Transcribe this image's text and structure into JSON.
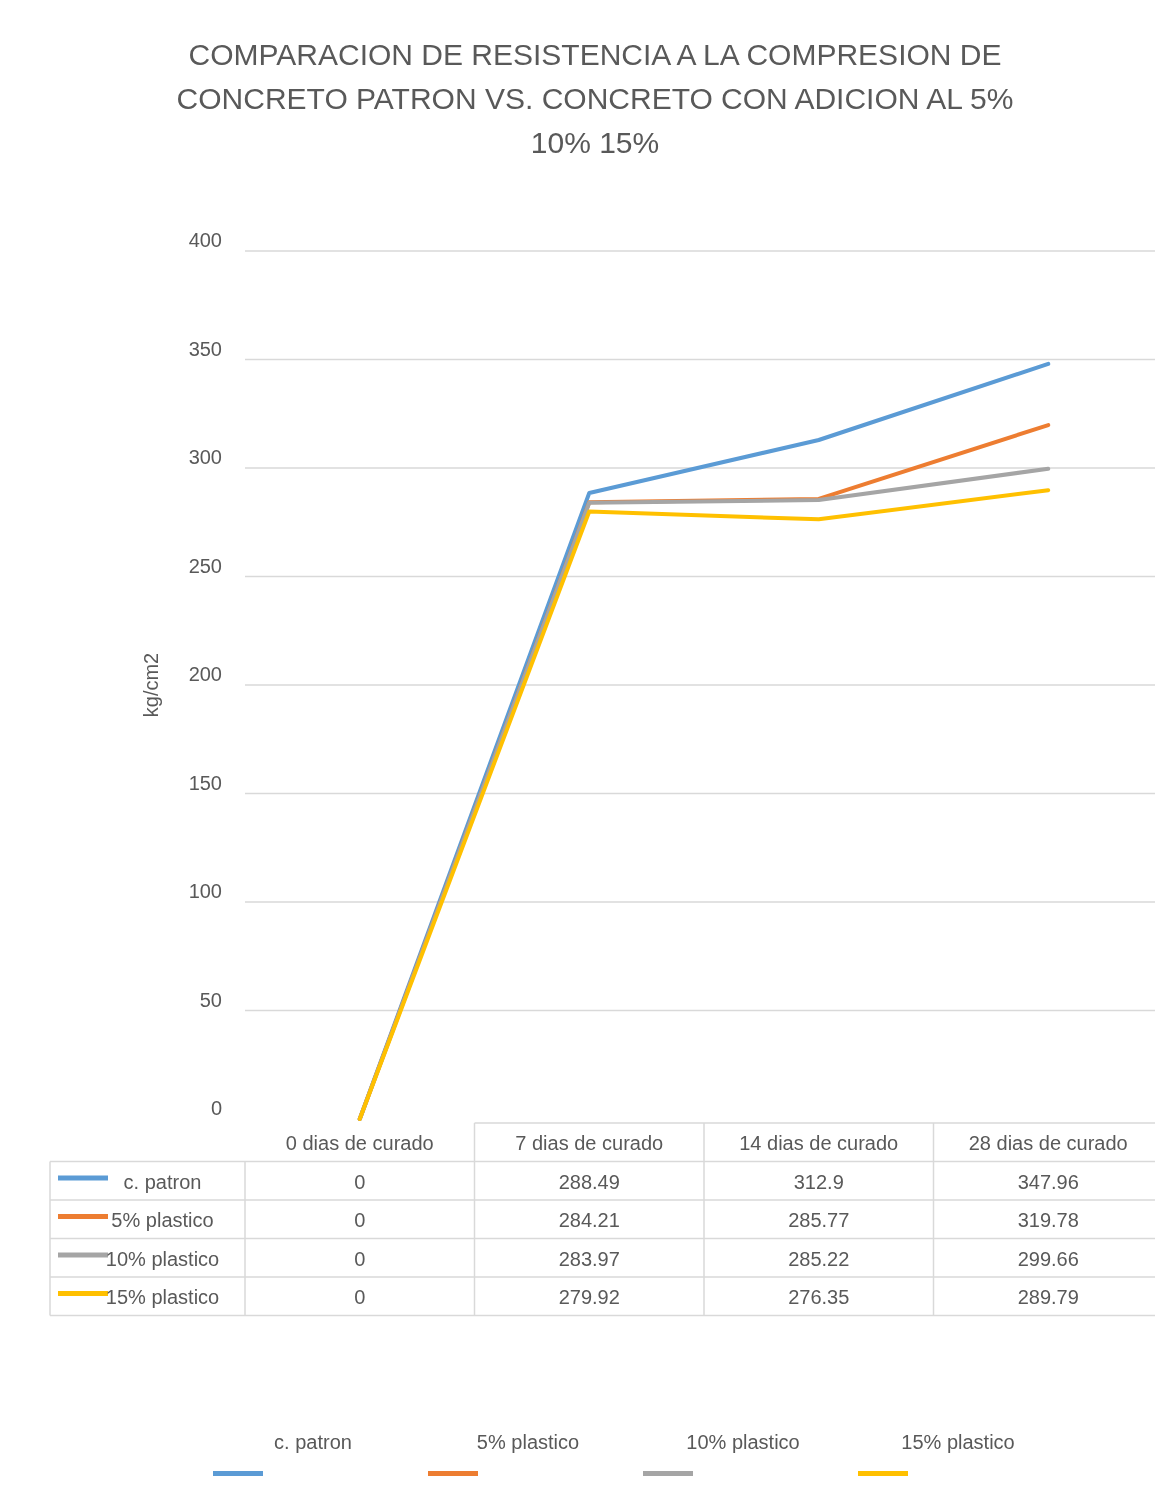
{
  "chart_data": {
    "type": "line",
    "title": "COMPARACION DE RESISTENCIA A LA COMPRESION DE CONCRETO PATRON VS. CONCRETO CON ADICION AL 5% 10% 15%",
    "ylabel": "kg/cm2",
    "categories": [
      "0 dias de curado",
      "7 dias de curado",
      "14 dias de curado",
      "28 dias de curado"
    ],
    "series": [
      {
        "name": "c. patron",
        "color": "#5b9bd5",
        "values": [
          0,
          288.49,
          312.9,
          347.96
        ]
      },
      {
        "name": "5% plastico",
        "color": "#ed7d31",
        "values": [
          0,
          284.21,
          285.77,
          319.78
        ]
      },
      {
        "name": "10% plastico",
        "color": "#a5a5a5",
        "values": [
          0,
          283.97,
          285.22,
          299.66
        ]
      },
      {
        "name": "15% plastico",
        "color": "#ffc000",
        "values": [
          0,
          279.92,
          276.35,
          289.79
        ]
      }
    ],
    "ylim": [
      0,
      400
    ],
    "yticks": [
      0,
      50,
      100,
      150,
      200,
      250,
      300,
      350,
      400
    ],
    "grid": "y",
    "legend": "bottom",
    "data_labels": true,
    "line_style": "solid"
  }
}
